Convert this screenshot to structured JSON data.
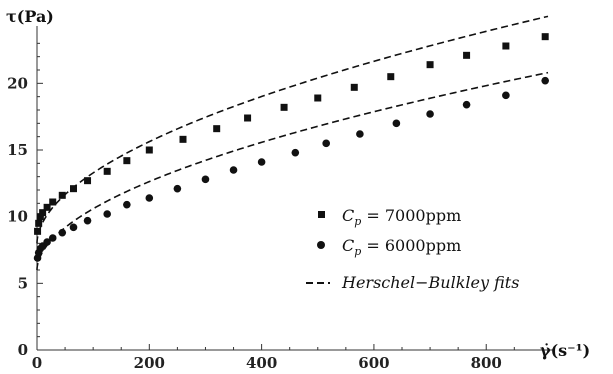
{
  "chart_data": {
    "type": "scatter",
    "title": "",
    "xlabel": "γ̇(s⁻¹)",
    "ylabel": "τ(Pa)",
    "xlim": [
      0,
      910
    ],
    "ylim": [
      0,
      24
    ],
    "xticks": [
      "0",
      "200",
      "400",
      "600",
      "800"
    ],
    "yticks": [
      "0",
      "5",
      "10",
      "15",
      "20"
    ],
    "grid": false,
    "legend_position": "right-middle",
    "series": [
      {
        "name": "Cₚ = 7000ppm",
        "marker": "square",
        "color": "#111111",
        "x": [
          1,
          3,
          6,
          10,
          18,
          28,
          45,
          65,
          90,
          125,
          160,
          200,
          260,
          320,
          375,
          440,
          500,
          565,
          630,
          700,
          765,
          835,
          905
        ],
        "y": [
          8.9,
          9.5,
          10.0,
          10.3,
          10.7,
          11.1,
          11.6,
          12.1,
          12.7,
          13.4,
          14.2,
          15.0,
          15.8,
          16.6,
          17.4,
          18.2,
          18.9,
          19.7,
          20.5,
          21.4,
          22.1,
          22.8,
          23.5
        ]
      },
      {
        "name": "Cₚ = 6000ppm",
        "marker": "circle",
        "color": "#111111",
        "x": [
          1,
          3,
          6,
          10,
          18,
          28,
          45,
          65,
          90,
          125,
          160,
          200,
          250,
          300,
          350,
          400,
          460,
          515,
          575,
          640,
          700,
          765,
          835,
          905
        ],
        "y": [
          6.9,
          7.3,
          7.6,
          7.8,
          8.1,
          8.4,
          8.8,
          9.2,
          9.7,
          10.2,
          10.9,
          11.4,
          12.1,
          12.8,
          13.5,
          14.1,
          14.8,
          15.5,
          16.2,
          17.0,
          17.7,
          18.4,
          19.1,
          20.2
        ]
      }
    ],
    "fit_label": "Herschel−Bulkley fits",
    "fits": [
      {
        "for": "Cₚ = 7000ppm",
        "tau0": 8.0,
        "k": 0.46,
        "n": 0.53
      },
      {
        "for": "Cₚ = 6000ppm",
        "tau0": 6.0,
        "k": 0.4,
        "n": 0.53
      }
    ]
  },
  "legend": {
    "entry1": {
      "name": "Cₚ = 7000ppm",
      "symbol": "C",
      "sub": "p",
      "rest": " = 7000ppm"
    },
    "entry2": {
      "name": "Cₚ = 6000ppm",
      "symbol": "C",
      "sub": "p",
      "rest": " = 6000ppm"
    },
    "fits_label": "Herschel−Bulkley fits"
  }
}
